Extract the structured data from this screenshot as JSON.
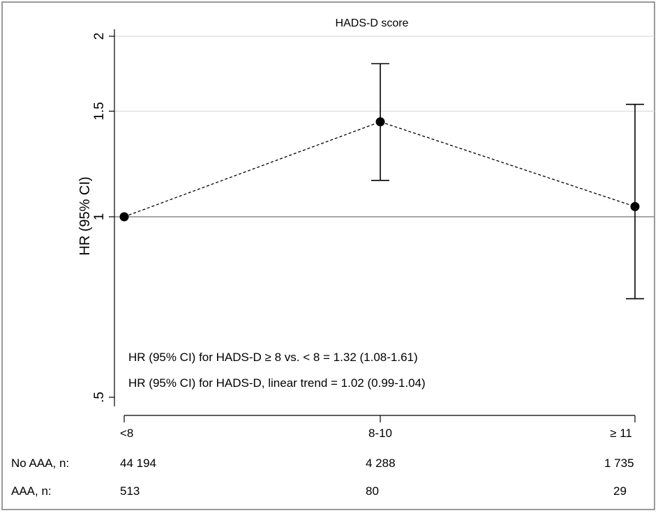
{
  "chart_data": {
    "type": "scatter",
    "title": "HADS-D score",
    "ylabel": "HR (95% CI)",
    "xlabel": "",
    "y_scale": "log",
    "ylim": [
      0.48,
      2.05
    ],
    "y_ticks": [
      {
        "value": 0.5,
        "label": ".5"
      },
      {
        "value": 1,
        "label": "1"
      },
      {
        "value": 1.5,
        "label": "1.5"
      },
      {
        "value": 2,
        "label": "2"
      }
    ],
    "grid": true,
    "reference_line": 1,
    "categories": [
      "<8",
      "8-10",
      "≥ 11"
    ],
    "series": [
      {
        "values": [
          1.0,
          1.44,
          1.04
        ],
        "ci_lower": [
          null,
          1.15,
          0.73
        ],
        "ci_upper": [
          null,
          1.8,
          1.54
        ],
        "line_style": "dashed",
        "marker": "circle"
      }
    ],
    "annotations": [
      "HR (95% CI) for HADS-D ≥  8 vs. < 8   = 1.32  (1.08-1.61)",
      "HR (95% CI) for HADS-D, linear trend = 1.02 (0.99-1.04)"
    ],
    "table_rows": [
      {
        "label": "No AAA, n:",
        "values": [
          "44 194",
          "4 288",
          "1 735"
        ]
      },
      {
        "label": "AAA, n:",
        "values": [
          "513",
          "80",
          "29"
        ]
      }
    ]
  }
}
